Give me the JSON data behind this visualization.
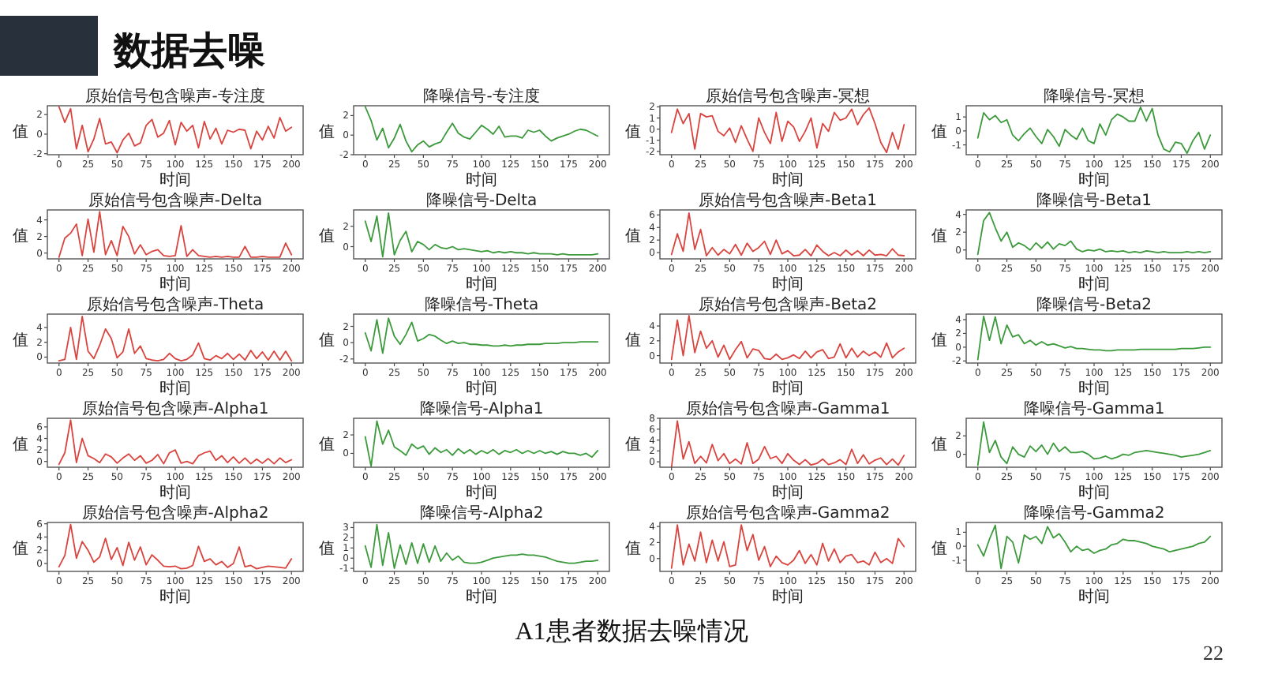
{
  "chart_data": [
    {
      "type": "line",
      "title": "原始信号包含噪声-专注度",
      "xlabel": "时间",
      "ylabel": "值",
      "x": [
        0,
        5,
        10,
        15,
        20,
        25,
        30,
        35,
        40,
        45,
        50,
        55,
        60,
        65,
        70,
        75,
        80,
        85,
        90,
        95,
        100,
        105,
        110,
        115,
        120,
        125,
        130,
        135,
        140,
        145,
        150,
        155,
        160,
        165,
        170,
        175,
        180,
        185,
        190,
        195,
        200
      ],
      "xlim": [
        -10,
        210
      ],
      "xticks": [
        0,
        25,
        50,
        75,
        100,
        125,
        150,
        175,
        200
      ],
      "ylim": [
        -2.1,
        2.9
      ],
      "yticks": [
        -2,
        0,
        2
      ],
      "series": [
        {
          "color": "#d9443f",
          "values": [
            2.8,
            1.2,
            2.6,
            -1.5,
            0.9,
            -1.8,
            -0.5,
            1.6,
            -1.0,
            -0.8,
            -1.9,
            -0.6,
            0.1,
            -1.2,
            -0.9,
            0.9,
            1.5,
            -0.3,
            0.1,
            1.4,
            -1.1,
            1.2,
            0.3,
            0.9,
            -1.4,
            1.3,
            -0.5,
            0.6,
            -1.0,
            0.4,
            0.2,
            0.5,
            0.4,
            -1.5,
            0.3,
            -0.6,
            0.8,
            -0.4,
            1.7,
            0.3,
            0.7
          ]
        }
      ]
    },
    {
      "type": "line",
      "title": "降噪信号-专注度",
      "xlabel": "时间",
      "ylabel": "值",
      "x": [
        0,
        5,
        10,
        15,
        20,
        25,
        30,
        35,
        40,
        45,
        50,
        55,
        60,
        65,
        70,
        75,
        80,
        85,
        90,
        95,
        100,
        105,
        110,
        115,
        120,
        125,
        130,
        135,
        140,
        145,
        150,
        155,
        160,
        165,
        170,
        175,
        180,
        185,
        190,
        195,
        200
      ],
      "xlim": [
        -10,
        210
      ],
      "xticks": [
        0,
        25,
        50,
        75,
        100,
        125,
        150,
        175,
        200
      ],
      "ylim": [
        -2,
        3
      ],
      "yticks": [
        -2,
        0,
        2
      ],
      "series": [
        {
          "color": "#3c9a3c",
          "values": [
            2.9,
            1.5,
            -0.5,
            0.7,
            -1.3,
            -0.3,
            1.1,
            -0.6,
            -1.7,
            -1.0,
            -0.6,
            -1.2,
            -0.9,
            -0.7,
            0.3,
            1.2,
            0.2,
            -0.2,
            -0.4,
            0.3,
            1.0,
            0.6,
            0.1,
            0.9,
            -0.2,
            -0.1,
            -0.1,
            -0.3,
            0.5,
            0.3,
            0.5,
            -0.1,
            -0.6,
            -0.3,
            -0.1,
            0.1,
            0.4,
            0.6,
            0.5,
            0.2,
            -0.1
          ]
        }
      ]
    },
    {
      "type": "line",
      "title": "原始信号包含噪声-冥想",
      "xlabel": "时间",
      "ylabel": "值",
      "x": [
        0,
        5,
        10,
        15,
        20,
        25,
        30,
        35,
        40,
        45,
        50,
        55,
        60,
        65,
        70,
        75,
        80,
        85,
        90,
        95,
        100,
        105,
        110,
        115,
        120,
        125,
        130,
        135,
        140,
        145,
        150,
        155,
        160,
        165,
        170,
        175,
        180,
        185,
        190,
        195,
        200
      ],
      "xlim": [
        -10,
        210
      ],
      "xticks": [
        0,
        25,
        50,
        75,
        100,
        125,
        150,
        175,
        200
      ],
      "ylim": [
        -2.3,
        2.1
      ],
      "yticks": [
        -2,
        -1,
        0,
        1,
        2
      ],
      "series": [
        {
          "color": "#d9443f",
          "values": [
            -0.3,
            1.8,
            0.5,
            1.4,
            -1.8,
            1.4,
            1.1,
            1.2,
            -0.2,
            -0.6,
            0.1,
            -1.2,
            0.3,
            -0.9,
            -2.0,
            1.0,
            -0.3,
            -1.3,
            1.5,
            -1.1,
            0.7,
            0.2,
            -1.1,
            -0.2,
            1.0,
            -1.7,
            0.5,
            -0.2,
            1.5,
            0.8,
            1.0,
            1.8,
            0.4,
            1.3,
            1.9,
            0.5,
            -1.2,
            -2.1,
            -0.3,
            -1.8,
            0.4
          ]
        }
      ]
    },
    {
      "type": "line",
      "title": "降噪信号-冥想",
      "xlabel": "时间",
      "ylabel": "值",
      "x": [
        0,
        5,
        10,
        15,
        20,
        25,
        30,
        35,
        40,
        45,
        50,
        55,
        60,
        65,
        70,
        75,
        80,
        85,
        90,
        95,
        100,
        105,
        110,
        115,
        120,
        125,
        130,
        135,
        140,
        145,
        150,
        155,
        160,
        165,
        170,
        175,
        180,
        185,
        190,
        195,
        200
      ],
      "xlim": [
        -10,
        210
      ],
      "xticks": [
        0,
        25,
        50,
        75,
        100,
        125,
        150,
        175,
        200
      ],
      "ylim": [
        -1.7,
        1.8
      ],
      "yticks": [
        -1,
        0,
        1
      ],
      "series": [
        {
          "color": "#3c9a3c",
          "values": [
            -0.5,
            1.3,
            0.8,
            1.1,
            0.6,
            0.8,
            -0.3,
            -0.7,
            -0.2,
            0.2,
            -0.4,
            -0.9,
            0.1,
            -0.4,
            -1.1,
            0.1,
            -0.3,
            -0.6,
            0.2,
            -0.7,
            -0.9,
            0.5,
            -0.3,
            0.8,
            1.2,
            1.0,
            0.7,
            0.7,
            1.7,
            0.7,
            1.6,
            -0.3,
            -1.3,
            -1.5,
            -0.8,
            -0.9,
            -1.6,
            -0.7,
            -0.1,
            -1.3,
            -0.3
          ]
        }
      ]
    },
    {
      "type": "line",
      "title": "原始信号包含噪声-Delta",
      "xlabel": "时间",
      "ylabel": "值",
      "x": [
        0,
        5,
        10,
        15,
        20,
        25,
        30,
        35,
        40,
        45,
        50,
        55,
        60,
        65,
        70,
        75,
        80,
        85,
        90,
        95,
        100,
        105,
        110,
        115,
        120,
        125,
        130,
        135,
        140,
        145,
        150,
        155,
        160,
        165,
        170,
        175,
        180,
        185,
        190,
        195,
        200
      ],
      "xlim": [
        -10,
        210
      ],
      "xticks": [
        0,
        25,
        50,
        75,
        100,
        125,
        150,
        175,
        200
      ],
      "ylim": [
        -0.7,
        5.2
      ],
      "yticks": [
        0,
        2,
        4
      ],
      "series": [
        {
          "color": "#d9443f",
          "values": [
            -0.5,
            1.8,
            2.4,
            3.5,
            -0.3,
            4.1,
            0.1,
            5.0,
            -0.2,
            1.5,
            -0.3,
            3.2,
            2.0,
            -0.1,
            1.0,
            -0.2,
            0.2,
            0.4,
            -0.3,
            -0.4,
            -0.3,
            3.3,
            -0.4,
            0.4,
            -0.3,
            -0.4,
            -0.5,
            -0.4,
            -0.5,
            -0.4,
            -0.5,
            -0.5,
            0.8,
            -0.5,
            -0.5,
            -0.4,
            -0.5,
            -0.5,
            -0.5,
            1.2,
            -0.2
          ]
        }
      ]
    },
    {
      "type": "line",
      "title": "降噪信号-Delta",
      "xlabel": "时间",
      "ylabel": "值",
      "x": [
        0,
        5,
        10,
        15,
        20,
        25,
        30,
        35,
        40,
        45,
        50,
        55,
        60,
        65,
        70,
        75,
        80,
        85,
        90,
        95,
        100,
        105,
        110,
        115,
        120,
        125,
        130,
        135,
        140,
        145,
        150,
        155,
        160,
        165,
        170,
        175,
        180,
        185,
        190,
        195,
        200
      ],
      "xlim": [
        -10,
        210
      ],
      "xticks": [
        0,
        25,
        50,
        75,
        100,
        125,
        150,
        175,
        200
      ],
      "ylim": [
        -1.2,
        3.6
      ],
      "yticks": [
        0,
        2
      ],
      "series": [
        {
          "color": "#3c9a3c",
          "values": [
            2.5,
            0.5,
            3.0,
            -1.0,
            3.3,
            -0.8,
            0.6,
            1.5,
            -0.5,
            0.5,
            0.2,
            -0.3,
            0.2,
            -0.1,
            -0.2,
            0.0,
            -0.3,
            -0.2,
            -0.3,
            -0.4,
            -0.5,
            -0.4,
            -0.6,
            -0.5,
            -0.6,
            -0.5,
            -0.6,
            -0.6,
            -0.7,
            -0.6,
            -0.7,
            -0.7,
            -0.7,
            -0.8,
            -0.7,
            -0.8,
            -0.8,
            -0.8,
            -0.8,
            -0.8,
            -0.7
          ]
        }
      ]
    },
    {
      "type": "line",
      "title": "原始信号包含噪声-Beta1",
      "xlabel": "时间",
      "ylabel": "值",
      "x": [
        0,
        5,
        10,
        15,
        20,
        25,
        30,
        35,
        40,
        45,
        50,
        55,
        60,
        65,
        70,
        75,
        80,
        85,
        90,
        95,
        100,
        105,
        110,
        115,
        120,
        125,
        130,
        135,
        140,
        145,
        150,
        155,
        160,
        165,
        170,
        175,
        180,
        185,
        190,
        195,
        200
      ],
      "xlim": [
        -10,
        210
      ],
      "xticks": [
        0,
        25,
        50,
        75,
        100,
        125,
        150,
        175,
        200
      ],
      "ylim": [
        -1,
        6.8
      ],
      "yticks": [
        0,
        2,
        4,
        6
      ],
      "series": [
        {
          "color": "#d9443f",
          "values": [
            -0.3,
            3.0,
            0.2,
            6.3,
            0.5,
            3.7,
            -0.5,
            0.8,
            -0.4,
            0.5,
            -0.2,
            1.3,
            -0.4,
            1.5,
            0.2,
            0.8,
            1.8,
            -0.3,
            2.0,
            -0.2,
            0.3,
            -0.5,
            -0.4,
            0.5,
            -0.5,
            1.2,
            0.2,
            -0.5,
            0.0,
            -0.5,
            0.4,
            -0.4,
            0.3,
            -0.5,
            0.4,
            -0.4,
            -0.3,
            -0.5,
            0.6,
            -0.4,
            -0.5
          ]
        }
      ]
    },
    {
      "type": "line",
      "title": "降噪信号-Beta1",
      "xlabel": "时间",
      "ylabel": "值",
      "x": [
        0,
        5,
        10,
        15,
        20,
        25,
        30,
        35,
        40,
        45,
        50,
        55,
        60,
        65,
        70,
        75,
        80,
        85,
        90,
        95,
        100,
        105,
        110,
        115,
        120,
        125,
        130,
        135,
        140,
        145,
        150,
        155,
        160,
        165,
        170,
        175,
        180,
        185,
        190,
        195,
        200
      ],
      "xlim": [
        -10,
        210
      ],
      "xticks": [
        0,
        25,
        50,
        75,
        100,
        125,
        150,
        175,
        200
      ],
      "ylim": [
        -1,
        4.5
      ],
      "yticks": [
        0,
        2,
        4
      ],
      "series": [
        {
          "color": "#3c9a3c",
          "values": [
            -0.5,
            3.3,
            4.2,
            2.5,
            1.0,
            2.0,
            0.3,
            0.8,
            0.5,
            0.0,
            0.8,
            0.2,
            0.9,
            0.1,
            0.7,
            0.5,
            1.0,
            0.1,
            -0.2,
            0.0,
            -0.1,
            0.1,
            -0.2,
            -0.1,
            -0.2,
            -0.1,
            -0.3,
            -0.2,
            -0.3,
            -0.1,
            -0.2,
            -0.3,
            -0.2,
            -0.3,
            -0.3,
            -0.3,
            -0.2,
            -0.3,
            -0.2,
            -0.3,
            -0.2
          ]
        }
      ]
    },
    {
      "type": "line",
      "title": "原始信号包含噪声-Theta",
      "xlabel": "时间",
      "ylabel": "值",
      "x": [
        0,
        5,
        10,
        15,
        20,
        25,
        30,
        35,
        40,
        45,
        50,
        55,
        60,
        65,
        70,
        75,
        80,
        85,
        90,
        95,
        100,
        105,
        110,
        115,
        120,
        125,
        130,
        135,
        140,
        145,
        150,
        155,
        160,
        165,
        170,
        175,
        180,
        185,
        190,
        195,
        200
      ],
      "xlim": [
        -10,
        210
      ],
      "xticks": [
        0,
        25,
        50,
        75,
        100,
        125,
        150,
        175,
        200
      ],
      "ylim": [
        -0.8,
        5.8
      ],
      "yticks": [
        0,
        2,
        4
      ],
      "series": [
        {
          "color": "#d9443f",
          "values": [
            -0.5,
            -0.3,
            4.0,
            -0.3,
            5.5,
            0.8,
            -0.2,
            1.6,
            3.8,
            2.5,
            -0.1,
            0.7,
            3.8,
            0.5,
            1.5,
            -0.2,
            -0.4,
            -0.5,
            -0.3,
            0.5,
            -0.2,
            -0.5,
            -0.3,
            0.3,
            1.9,
            -0.2,
            -0.4,
            0.2,
            -0.2,
            0.5,
            -0.3,
            0.4,
            -0.4,
            0.9,
            -0.2,
            0.7,
            -0.4,
            0.8,
            -0.4,
            0.8,
            -0.5
          ]
        }
      ]
    },
    {
      "type": "line",
      "title": "降噪信号-Theta",
      "xlabel": "时间",
      "ylabel": "值",
      "x": [
        0,
        5,
        10,
        15,
        20,
        25,
        30,
        35,
        40,
        45,
        50,
        55,
        60,
        65,
        70,
        75,
        80,
        85,
        90,
        95,
        100,
        105,
        110,
        115,
        120,
        125,
        130,
        135,
        140,
        145,
        150,
        155,
        160,
        165,
        170,
        175,
        180,
        185,
        190,
        195,
        200
      ],
      "xlim": [
        -10,
        210
      ],
      "xticks": [
        0,
        25,
        50,
        75,
        100,
        125,
        150,
        175,
        200
      ],
      "ylim": [
        -2.5,
        3.5
      ],
      "yticks": [
        -2,
        0,
        2
      ],
      "series": [
        {
          "color": "#3c9a3c",
          "values": [
            1.2,
            -1.0,
            2.8,
            -1.3,
            3.0,
            0.8,
            -0.2,
            1.0,
            2.5,
            0.2,
            0.5,
            1.0,
            0.8,
            0.3,
            -0.1,
            0.2,
            -0.1,
            0.0,
            -0.2,
            -0.2,
            -0.3,
            -0.3,
            -0.4,
            -0.4,
            -0.3,
            -0.4,
            -0.3,
            -0.3,
            -0.2,
            -0.2,
            -0.2,
            -0.1,
            -0.1,
            -0.1,
            0.0,
            0.0,
            0.0,
            0.1,
            0.1,
            0.1,
            0.1
          ]
        }
      ]
    },
    {
      "type": "line",
      "title": "原始信号包含噪声-Beta2",
      "xlabel": "时间",
      "ylabel": "值",
      "x": [
        0,
        5,
        10,
        15,
        20,
        25,
        30,
        35,
        40,
        45,
        50,
        55,
        60,
        65,
        70,
        75,
        80,
        85,
        90,
        95,
        100,
        105,
        110,
        115,
        120,
        125,
        130,
        135,
        140,
        145,
        150,
        155,
        160,
        165,
        170,
        175,
        180,
        185,
        190,
        195,
        200
      ],
      "xlim": [
        -10,
        210
      ],
      "xticks": [
        0,
        25,
        50,
        75,
        100,
        125,
        150,
        175,
        200
      ],
      "ylim": [
        -1,
        5.6
      ],
      "yticks": [
        0,
        2,
        4
      ],
      "series": [
        {
          "color": "#d9443f",
          "values": [
            -0.5,
            4.8,
            0.0,
            5.4,
            0.4,
            3.3,
            1.0,
            2.0,
            -0.2,
            1.4,
            -0.5,
            0.8,
            1.9,
            -0.3,
            0.9,
            0.7,
            -0.4,
            -0.5,
            0.2,
            -0.5,
            -0.3,
            0.1,
            -0.4,
            0.6,
            -0.3,
            0.5,
            0.8,
            -0.4,
            -0.2,
            1.6,
            -0.3,
            1.0,
            -0.2,
            0.6,
            0.0,
            0.5,
            -0.2,
            1.7,
            -0.3,
            0.5,
            1.0
          ]
        }
      ]
    },
    {
      "type": "line",
      "title": "降噪信号-Beta2",
      "xlabel": "时间",
      "ylabel": "值",
      "x": [
        0,
        5,
        10,
        15,
        20,
        25,
        30,
        35,
        40,
        45,
        50,
        55,
        60,
        65,
        70,
        75,
        80,
        85,
        90,
        95,
        100,
        105,
        110,
        115,
        120,
        125,
        130,
        135,
        140,
        145,
        150,
        155,
        160,
        165,
        170,
        175,
        180,
        185,
        190,
        195,
        200
      ],
      "xlim": [
        -10,
        210
      ],
      "xticks": [
        0,
        25,
        50,
        75,
        100,
        125,
        150,
        175,
        200
      ],
      "ylim": [
        -2.3,
        4.8
      ],
      "yticks": [
        -2,
        0,
        2,
        4
      ],
      "series": [
        {
          "color": "#3c9a3c",
          "values": [
            -1.8,
            4.5,
            1.0,
            4.4,
            0.5,
            3.2,
            1.5,
            1.8,
            0.5,
            1.0,
            0.3,
            0.8,
            0.3,
            0.5,
            0.2,
            -0.1,
            0.1,
            -0.2,
            -0.2,
            -0.3,
            -0.4,
            -0.4,
            -0.5,
            -0.5,
            -0.4,
            -0.4,
            -0.4,
            -0.4,
            -0.3,
            -0.3,
            -0.3,
            -0.3,
            -0.3,
            -0.3,
            -0.3,
            -0.2,
            -0.2,
            -0.2,
            -0.1,
            0.0,
            0.0
          ]
        }
      ]
    },
    {
      "type": "line",
      "title": "原始信号包含噪声-Alpha1",
      "xlabel": "时间",
      "ylabel": "值",
      "x": [
        0,
        5,
        10,
        15,
        20,
        25,
        30,
        35,
        40,
        45,
        50,
        55,
        60,
        65,
        70,
        75,
        80,
        85,
        90,
        95,
        100,
        105,
        110,
        115,
        120,
        125,
        130,
        135,
        140,
        145,
        150,
        155,
        160,
        165,
        170,
        175,
        180,
        185,
        190,
        195,
        200
      ],
      "xlim": [
        -10,
        210
      ],
      "xticks": [
        0,
        25,
        50,
        75,
        100,
        125,
        150,
        175,
        200
      ],
      "ylim": [
        -1,
        7.5
      ],
      "yticks": [
        0,
        2,
        4,
        6
      ],
      "series": [
        {
          "color": "#d9443f",
          "values": [
            -0.5,
            1.5,
            7.2,
            -0.2,
            4.0,
            1.0,
            0.5,
            -0.2,
            1.3,
            0.8,
            -0.3,
            0.6,
            1.3,
            0.2,
            1.0,
            -0.3,
            0.2,
            1.2,
            -0.4,
            1.5,
            2.0,
            -0.3,
            0.0,
            -0.4,
            1.0,
            1.5,
            1.8,
            0.2,
            1.0,
            -0.2,
            0.8,
            -0.3,
            0.6,
            -0.4,
            0.4,
            -0.3,
            0.5,
            -0.4,
            0.6,
            -0.2,
            0.3
          ]
        }
      ]
    },
    {
      "type": "line",
      "title": "降噪信号-Alpha1",
      "xlabel": "时间",
      "ylabel": "值",
      "x": [
        0,
        5,
        10,
        15,
        20,
        25,
        30,
        35,
        40,
        45,
        50,
        55,
        60,
        65,
        70,
        75,
        80,
        85,
        90,
        95,
        100,
        105,
        110,
        115,
        120,
        125,
        130,
        135,
        140,
        145,
        150,
        155,
        160,
        165,
        170,
        175,
        180,
        185,
        190,
        195,
        200
      ],
      "xlim": [
        -10,
        210
      ],
      "xticks": [
        0,
        25,
        50,
        75,
        100,
        125,
        150,
        175,
        200
      ],
      "ylim": [
        -1.5,
        3.8
      ],
      "yticks": [
        0,
        2
      ],
      "series": [
        {
          "color": "#3c9a3c",
          "values": [
            1.8,
            -1.4,
            3.5,
            1.0,
            2.5,
            0.7,
            0.3,
            -0.2,
            1.0,
            0.5,
            0.8,
            -0.1,
            0.6,
            0.1,
            0.4,
            -0.2,
            0.5,
            0.0,
            0.4,
            -0.1,
            0.3,
            0.0,
            0.4,
            -0.1,
            0.3,
            0.1,
            0.4,
            0.0,
            0.3,
            0.0,
            0.3,
            0.0,
            0.2,
            -0.1,
            0.2,
            0.0,
            0.0,
            -0.2,
            0.0,
            -0.4,
            0.3
          ]
        }
      ]
    },
    {
      "type": "line",
      "title": "原始信号包含噪声-Gamma1",
      "xlabel": "时间",
      "ylabel": "值",
      "x": [
        0,
        5,
        10,
        15,
        20,
        25,
        30,
        35,
        40,
        45,
        50,
        55,
        60,
        65,
        70,
        75,
        80,
        85,
        90,
        95,
        100,
        105,
        110,
        115,
        120,
        125,
        130,
        135,
        140,
        145,
        150,
        155,
        160,
        165,
        170,
        175,
        180,
        185,
        190,
        195,
        200
      ],
      "xlim": [
        -10,
        210
      ],
      "xticks": [
        0,
        25,
        50,
        75,
        100,
        125,
        150,
        175,
        200
      ],
      "ylim": [
        -1,
        8
      ],
      "yticks": [
        0,
        2,
        4,
        6,
        8
      ],
      "series": [
        {
          "color": "#d9443f",
          "values": [
            -1.0,
            7.5,
            0.5,
            3.7,
            -0.3,
            1.0,
            -0.2,
            3.2,
            0.2,
            1.5,
            -0.3,
            0.5,
            -0.4,
            3.5,
            -0.3,
            0.5,
            2.8,
            0.6,
            1.0,
            -0.3,
            1.5,
            0.3,
            -0.5,
            0.4,
            -0.6,
            -0.3,
            0.5,
            -0.5,
            -0.2,
            0.4,
            -0.5,
            2.3,
            -0.3,
            1.3,
            -0.4,
            0.3,
            0.7,
            -0.5,
            0.5,
            -0.6,
            1.2
          ]
        }
      ]
    },
    {
      "type": "line",
      "title": "降噪信号-Gamma1",
      "xlabel": "时间",
      "ylabel": "值",
      "x": [
        0,
        5,
        10,
        15,
        20,
        25,
        30,
        35,
        40,
        45,
        50,
        55,
        60,
        65,
        70,
        75,
        80,
        85,
        90,
        95,
        100,
        105,
        110,
        115,
        120,
        125,
        130,
        135,
        140,
        145,
        150,
        155,
        160,
        165,
        170,
        175,
        180,
        185,
        190,
        195,
        200
      ],
      "xlim": [
        -10,
        210
      ],
      "xticks": [
        0,
        25,
        50,
        75,
        100,
        125,
        150,
        175,
        200
      ],
      "ylim": [
        -1.4,
        3.9
      ],
      "yticks": [
        0,
        2
      ],
      "series": [
        {
          "color": "#3c9a3c",
          "values": [
            -1.2,
            3.5,
            0.2,
            1.5,
            -0.3,
            -1.0,
            0.8,
            0.0,
            -0.3,
            0.9,
            0.3,
            1.0,
            0.0,
            1.2,
            0.3,
            0.8,
            0.2,
            0.2,
            0.3,
            0.0,
            -0.5,
            -0.4,
            -0.2,
            -0.5,
            -0.3,
            0.0,
            -0.1,
            0.2,
            0.3,
            0.4,
            0.3,
            0.2,
            0.1,
            0.0,
            -0.1,
            -0.3,
            -0.2,
            -0.1,
            0.0,
            0.2,
            0.4
          ]
        }
      ]
    },
    {
      "type": "line",
      "title": "原始信号包含噪声-Alpha2",
      "xlabel": "时间",
      "ylabel": "值",
      "x": [
        0,
        5,
        10,
        15,
        20,
        25,
        30,
        35,
        40,
        45,
        50,
        55,
        60,
        65,
        70,
        75,
        80,
        85,
        90,
        95,
        100,
        105,
        110,
        115,
        120,
        125,
        130,
        135,
        140,
        145,
        150,
        155,
        160,
        165,
        170,
        175,
        180,
        185,
        190,
        195,
        200
      ],
      "xlim": [
        -10,
        210
      ],
      "xticks": [
        0,
        25,
        50,
        75,
        100,
        125,
        150,
        175,
        200
      ],
      "ylim": [
        -1.2,
        6.2
      ],
      "yticks": [
        0,
        2,
        4,
        6
      ],
      "series": [
        {
          "color": "#d9443f",
          "values": [
            -0.5,
            1.2,
            5.9,
            0.8,
            3.3,
            2.0,
            0.2,
            1.0,
            3.8,
            0.6,
            2.4,
            -0.3,
            3.2,
            0.5,
            2.5,
            -0.2,
            1.3,
            0.5,
            -0.4,
            -0.5,
            -0.4,
            -0.8,
            -0.7,
            -0.3,
            2.6,
            0.3,
            0.7,
            -0.2,
            0.3,
            -0.6,
            0.0,
            2.5,
            -0.5,
            -0.3,
            -0.8,
            -0.6,
            -0.4,
            -0.5,
            -0.6,
            -0.7,
            0.7
          ]
        }
      ]
    },
    {
      "type": "line",
      "title": "降噪信号-Alpha2",
      "xlabel": "时间",
      "ylabel": "值",
      "x": [
        0,
        5,
        10,
        15,
        20,
        25,
        30,
        35,
        40,
        45,
        50,
        55,
        60,
        65,
        70,
        75,
        80,
        85,
        90,
        95,
        100,
        105,
        110,
        115,
        120,
        125,
        130,
        135,
        140,
        145,
        150,
        155,
        160,
        165,
        170,
        175,
        180,
        185,
        190,
        195,
        200
      ],
      "xlim": [
        -10,
        210
      ],
      "xticks": [
        0,
        25,
        50,
        75,
        100,
        125,
        150,
        175,
        200
      ],
      "ylim": [
        -1.3,
        3.5
      ],
      "yticks": [
        -1,
        0,
        1,
        2,
        3
      ],
      "series": [
        {
          "color": "#3c9a3c",
          "values": [
            1.2,
            -0.9,
            3.3,
            -0.7,
            2.5,
            -1.0,
            1.3,
            -0.6,
            1.5,
            -0.5,
            1.4,
            -0.4,
            1.2,
            -0.3,
            0.5,
            -0.2,
            0.2,
            -0.4,
            -0.5,
            -0.5,
            -0.4,
            -0.2,
            0.0,
            0.1,
            0.2,
            0.3,
            0.3,
            0.4,
            0.3,
            0.3,
            0.2,
            0.1,
            -0.1,
            -0.3,
            -0.4,
            -0.5,
            -0.5,
            -0.4,
            -0.3,
            -0.3,
            -0.2
          ]
        }
      ]
    },
    {
      "type": "line",
      "title": "原始信号包含噪声-Gamma2",
      "xlabel": "时间",
      "ylabel": "值",
      "x": [
        0,
        5,
        10,
        15,
        20,
        25,
        30,
        35,
        40,
        45,
        50,
        55,
        60,
        65,
        70,
        75,
        80,
        85,
        90,
        95,
        100,
        105,
        110,
        115,
        120,
        125,
        130,
        135,
        140,
        145,
        150,
        155,
        160,
        165,
        170,
        175,
        180,
        185,
        190,
        195,
        200
      ],
      "xlim": [
        -10,
        210
      ],
      "xticks": [
        0,
        25,
        50,
        75,
        100,
        125,
        150,
        175,
        200
      ],
      "ylim": [
        -1.6,
        4.5
      ],
      "yticks": [
        0,
        2,
        4
      ],
      "series": [
        {
          "color": "#d9443f",
          "values": [
            -1.2,
            4.2,
            -0.8,
            1.8,
            -0.3,
            3.3,
            -0.5,
            2.3,
            -0.3,
            2.1,
            -1.0,
            -0.8,
            4.2,
            1.0,
            3.0,
            -0.2,
            1.5,
            -1.0,
            0.3,
            -0.5,
            -0.8,
            -0.2,
            1.0,
            -0.6,
            0.5,
            -0.8,
            1.9,
            -0.3,
            1.2,
            -0.5,
            0.3,
            0.5,
            -0.5,
            -0.3,
            -0.8,
            0.8,
            -0.5,
            0.0,
            -0.6,
            2.5,
            1.5
          ]
        }
      ]
    },
    {
      "type": "line",
      "title": "降噪信号-Gamma2",
      "xlabel": "时间",
      "ylabel": "值",
      "x": [
        0,
        5,
        10,
        15,
        20,
        25,
        30,
        35,
        40,
        45,
        50,
        55,
        60,
        65,
        70,
        75,
        80,
        85,
        90,
        95,
        100,
        105,
        110,
        115,
        120,
        125,
        130,
        135,
        140,
        145,
        150,
        155,
        160,
        165,
        170,
        175,
        180,
        185,
        190,
        195,
        200
      ],
      "xlim": [
        -10,
        210
      ],
      "xticks": [
        0,
        25,
        50,
        75,
        100,
        125,
        150,
        175,
        200
      ],
      "ylim": [
        -1.8,
        1.7
      ],
      "yticks": [
        -1,
        0,
        1
      ],
      "series": [
        {
          "color": "#3c9a3c",
          "values": [
            0.1,
            -0.7,
            0.5,
            1.5,
            -1.6,
            0.7,
            0.3,
            -1.2,
            0.8,
            0.5,
            0.7,
            0.2,
            1.4,
            0.6,
            0.9,
            0.3,
            -0.4,
            0.0,
            -0.3,
            -0.2,
            -0.5,
            -0.3,
            -0.2,
            0.1,
            0.2,
            0.5,
            0.4,
            0.4,
            0.3,
            0.2,
            0.0,
            -0.1,
            -0.2,
            -0.4,
            -0.3,
            -0.2,
            -0.1,
            0.0,
            0.2,
            0.3,
            0.7
          ]
        }
      ]
    },
    {
      "type": "other",
      "title": "数据去噪",
      "annotations": [
        "A1患者数据去噪情况",
        "22"
      ]
    }
  ]
}
